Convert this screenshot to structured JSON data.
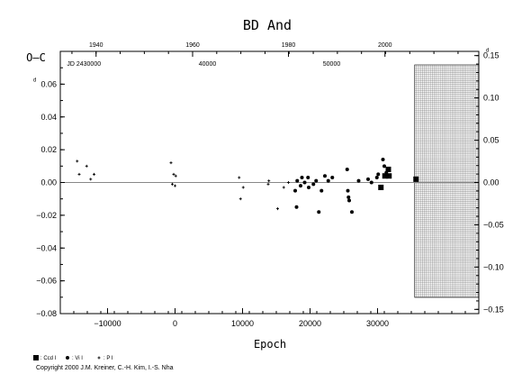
{
  "chart_data": {
    "type": "scatter",
    "title": "BD And",
    "ylabel": "O–C",
    "xlabel": "Epoch",
    "xlim": [
      -17000,
      45000
    ],
    "ylim": [
      -0.08,
      0.08
    ],
    "x_ticks": [
      -10000,
      0,
      10000,
      20000,
      30000
    ],
    "x_tick_labels": [
      "−10000",
      "0",
      "10000",
      "20000",
      "30000"
    ],
    "y_ticks": [
      -0.08,
      -0.06,
      -0.04,
      -0.02,
      0.0,
      0.02,
      0.04,
      0.06
    ],
    "y_tick_labels": [
      "−0.08",
      "−0.06",
      "−0.04",
      "−0.02",
      "0.00",
      "0.02",
      "0.04",
      "0.06"
    ],
    "right_axis": {
      "ylim": [
        -0.155,
        0.155
      ],
      "ticks": [
        -0.15,
        -0.1,
        -0.05,
        0.0,
        0.05,
        0.1,
        0.15
      ],
      "tick_labels": [
        "−0.15",
        "−0.10",
        "−0.05",
        "0.00",
        "0.05",
        "0.10",
        "0.15"
      ],
      "superscript": "d"
    },
    "top_axis": {
      "year_ticks": [
        {
          "epoch": -11700,
          "label": "1940"
        },
        {
          "epoch": 2600,
          "label": "1960"
        },
        {
          "epoch": 16800,
          "label": "1980"
        },
        {
          "epoch": 31100,
          "label": "2000"
        }
      ],
      "jd_labels": [
        {
          "epoch": -13500,
          "label": "JD 2430000"
        },
        {
          "epoch": 4800,
          "label": "40000"
        },
        {
          "epoch": 23200,
          "label": "50000"
        }
      ]
    },
    "prediction_zone_start": 35500,
    "grid": false,
    "legend_position": "bottom-left",
    "series": [
      {
        "name": "Ccd",
        "marker": "square",
        "points": [
          [
            30500,
            -0.003
          ],
          [
            31100,
            0.004
          ],
          [
            31600,
            0.008
          ],
          [
            31700,
            0.004
          ],
          [
            35700,
            0.002
          ]
        ]
      },
      {
        "name": "Vi",
        "marker": "circle",
        "points": [
          [
            18100,
            0.001
          ],
          [
            18800,
            0.003
          ],
          [
            19200,
            0.0
          ],
          [
            19800,
            -0.003
          ],
          [
            20500,
            -0.001
          ],
          [
            20900,
            0.001
          ],
          [
            21300,
            -0.018
          ],
          [
            21700,
            -0.005
          ],
          [
            22200,
            0.004
          ],
          [
            22700,
            0.001
          ],
          [
            23300,
            0.003
          ],
          [
            25500,
            0.008
          ],
          [
            25600,
            -0.005
          ],
          [
            25700,
            -0.009
          ],
          [
            25800,
            -0.011
          ],
          [
            26200,
            -0.018
          ],
          [
            27200,
            0.001
          ],
          [
            28600,
            0.002
          ],
          [
            29100,
            0.0
          ],
          [
            29900,
            0.003
          ],
          [
            30100,
            0.005
          ],
          [
            30800,
            0.014
          ],
          [
            31000,
            0.01
          ],
          [
            31300,
            0.006
          ],
          [
            19700,
            0.003
          ],
          [
            18000,
            -0.015
          ],
          [
            17800,
            -0.005
          ],
          [
            18600,
            -0.002
          ]
        ]
      },
      {
        "name": "Pi",
        "marker": "plus",
        "points": [
          [
            -14500,
            0.013
          ],
          [
            -14200,
            0.005
          ],
          [
            -13100,
            0.01
          ],
          [
            -12500,
            0.002
          ],
          [
            -12000,
            0.005
          ],
          [
            -600,
            0.012
          ],
          [
            -400,
            -0.001
          ],
          [
            -200,
            0.005
          ],
          [
            0,
            -0.002
          ],
          [
            100,
            0.004
          ],
          [
            9500,
            0.003
          ],
          [
            9700,
            -0.01
          ],
          [
            10100,
            -0.003
          ],
          [
            13800,
            -0.001
          ],
          [
            13900,
            0.001
          ],
          [
            15200,
            -0.016
          ],
          [
            16100,
            -0.003
          ],
          [
            16800,
            0.0
          ]
        ]
      }
    ],
    "legend": [
      {
        "marker": "square",
        "label": ": Ccd I"
      },
      {
        "marker": "circle",
        "label": ": Vi I"
      },
      {
        "marker": "plus",
        "label": ": P I"
      }
    ]
  },
  "copyright": "Copyright 2000 J.M. Kreiner, C.-H. Kim, I.-S. Nha"
}
